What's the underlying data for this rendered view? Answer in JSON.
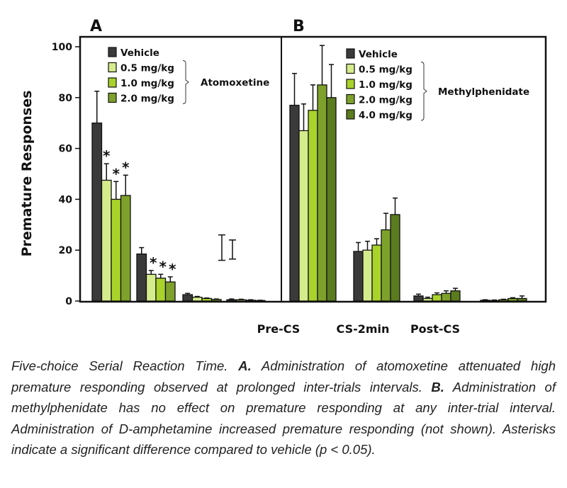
{
  "chart_data": [
    {
      "type": "bar",
      "panel_label": "A",
      "ylabel": "Premature Responses",
      "ylim": [
        0,
        100
      ],
      "yticks": [
        "0",
        "20",
        "40",
        "60",
        "80",
        "100"
      ],
      "categories": [
        "Pre-CS",
        "CS-2min",
        "Post-CS",
        ""
      ],
      "legend_title": "Atomoxetine",
      "series": [
        {
          "name": "Vehicle",
          "color": "#3a3a3a",
          "values": [
            70,
            18.5,
            2.5,
            0.5
          ],
          "errors": [
            12.5,
            2.5,
            0.5,
            0.3
          ],
          "significant": [
            false,
            false,
            false,
            false
          ]
        },
        {
          "name": "0.5 mg/kg",
          "color": "#d5ec8c",
          "values": [
            47.5,
            10.5,
            1.5,
            0.5
          ],
          "errors": [
            6.5,
            1.5,
            0.3,
            0.2
          ],
          "significant": [
            true,
            true,
            false,
            false
          ]
        },
        {
          "name": "1.0 mg/kg",
          "color": "#a9d22b",
          "values": [
            40,
            9,
            1,
            0.3
          ],
          "errors": [
            7,
            1.5,
            0.2,
            0.2
          ],
          "significant": [
            true,
            true,
            false,
            false
          ]
        },
        {
          "name": "2.0 mg/kg",
          "color": "#7ea12b",
          "values": [
            41.5,
            7.5,
            0.6,
            0.2
          ],
          "errors": [
            8,
            2,
            0.2,
            0.1
          ],
          "significant": [
            true,
            true,
            false,
            false
          ]
        }
      ],
      "floating_error_bars": [
        [
          16,
          26
        ],
        [
          16.5,
          24
        ]
      ],
      "significance_marker": "*"
    },
    {
      "type": "bar",
      "panel_label": "B",
      "ylim": [
        0,
        100
      ],
      "categories": [
        "Pre-CS",
        "CS-2min",
        "Post-CS",
        ""
      ],
      "legend_title": "Methylphenidate",
      "series": [
        {
          "name": "Vehicle",
          "color": "#3a3a3a",
          "values": [
            77,
            19.5,
            2,
            0.3
          ],
          "errors": [
            12.5,
            3.5,
            0.7,
            0.2
          ]
        },
        {
          "name": "0.5 mg/kg",
          "color": "#d5ec8c",
          "values": [
            67,
            20,
            1,
            0.2
          ],
          "errors": [
            10.5,
            3.5,
            0.5,
            0.2
          ]
        },
        {
          "name": "1.0 mg/kg",
          "color": "#a9d22b",
          "values": [
            75,
            22,
            2.5,
            0.5
          ],
          "errors": [
            10,
            2.5,
            0.7,
            0.2
          ]
        },
        {
          "name": "2.0 mg/kg",
          "color": "#7ea12b",
          "values": [
            85,
            28,
            3,
            1
          ],
          "errors": [
            15.5,
            6.5,
            1,
            0.3
          ]
        },
        {
          "name": "4.0 mg/kg",
          "color": "#5b7b1f",
          "values": [
            80,
            34,
            4,
            1
          ],
          "errors": [
            13,
            6.5,
            1,
            1
          ]
        }
      ]
    }
  ],
  "caption": {
    "p1": "Five-choice Serial Reaction Time. ",
    "a": "A.",
    "p2": " Administration of atomoxetine attenuated high premature responding observed at prolonged inter-trials intervals. ",
    "b": "B.",
    "p3": " Administration of methylphenidate has no effect on premature responding at any inter-trial interval. Administration of D-amphetamine increased premature responding (not shown). Asterisks indicate a significant difference compared to vehicle (p < 0.05)."
  }
}
